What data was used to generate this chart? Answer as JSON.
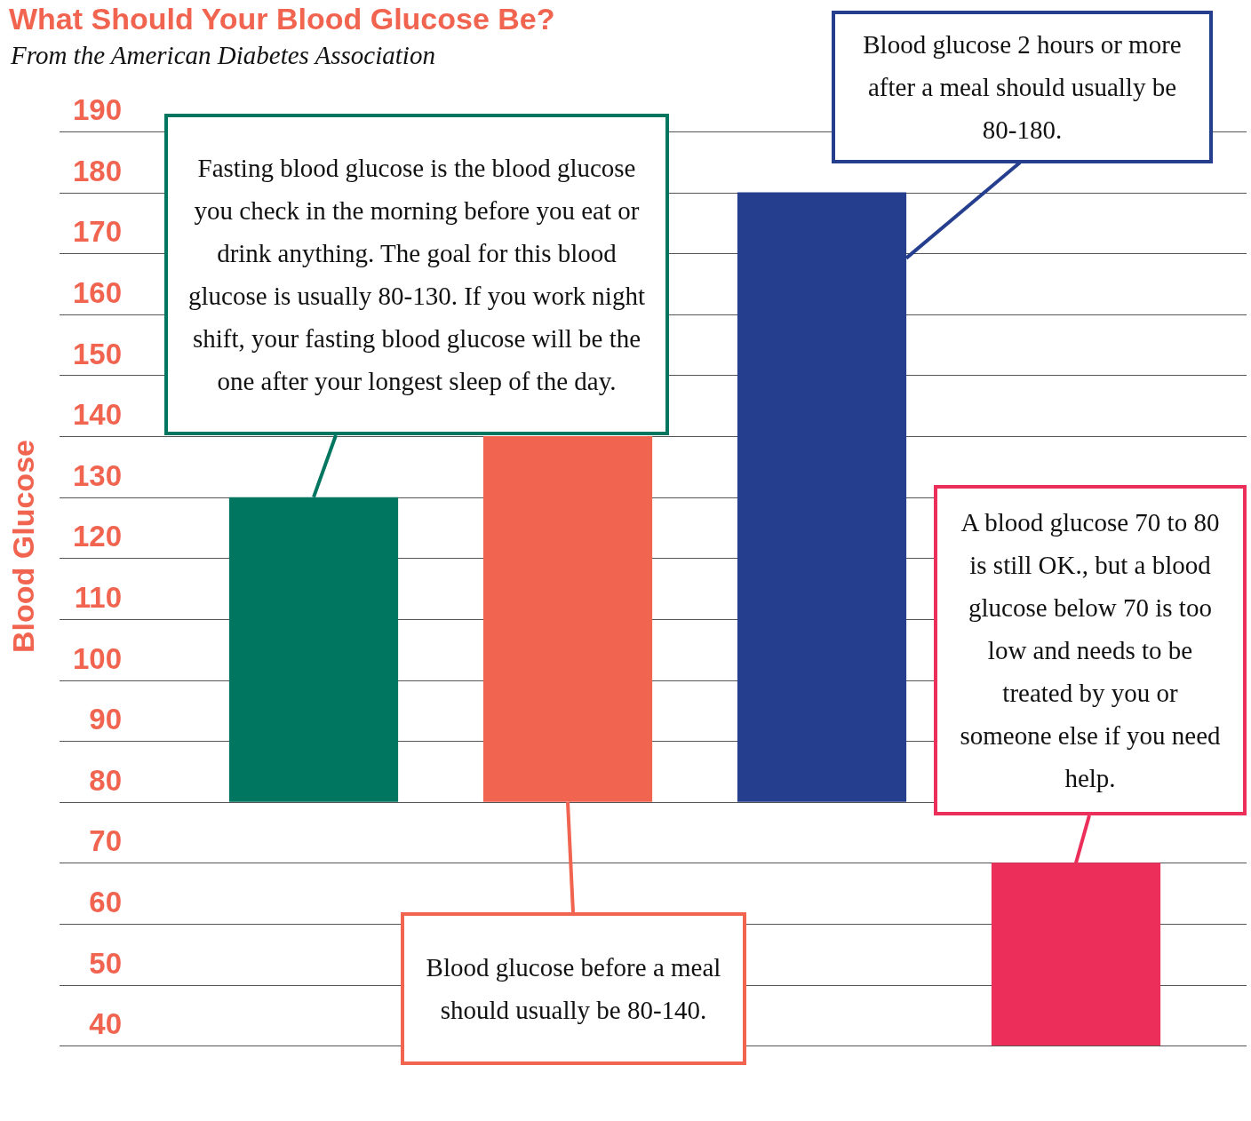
{
  "chart_data": {
    "type": "bar",
    "title": "What Should Your Blood Glucose Be?",
    "subtitle": "From the American Diabetes Association",
    "ylabel": "Blood Glucose",
    "categories": [
      null,
      null,
      null,
      null
    ],
    "base": [
      80,
      80,
      80,
      40
    ],
    "values": [
      50,
      60,
      100,
      30
    ],
    "colors": [
      "#00755f",
      "#f06450",
      "#253f8e",
      "#ec2f5a"
    ],
    "ylim": [
      40,
      190
    ],
    "yticks": [
      40,
      50,
      60,
      70,
      80,
      90,
      100,
      110,
      120,
      130,
      140,
      150,
      160,
      170,
      180,
      190
    ],
    "grid": "y",
    "legend": false,
    "annotations": [
      "Fasting blood glucose is the blood glucose you check in the morning before you eat or drink anything. The goal for this blood glucose is usually 80-130. If you work night shift, your fasting blood glucose will be the one after your longest sleep of the day.",
      "Blood glucose before a meal should usually be 80-140.",
      "Blood glucose 2 hours or more after a meal should usually be 80-180.",
      "A blood glucose 70 to 80 is still OK., but a blood glucose below 70 is too low and needs to be treated by you or someone else if you need help."
    ]
  }
}
